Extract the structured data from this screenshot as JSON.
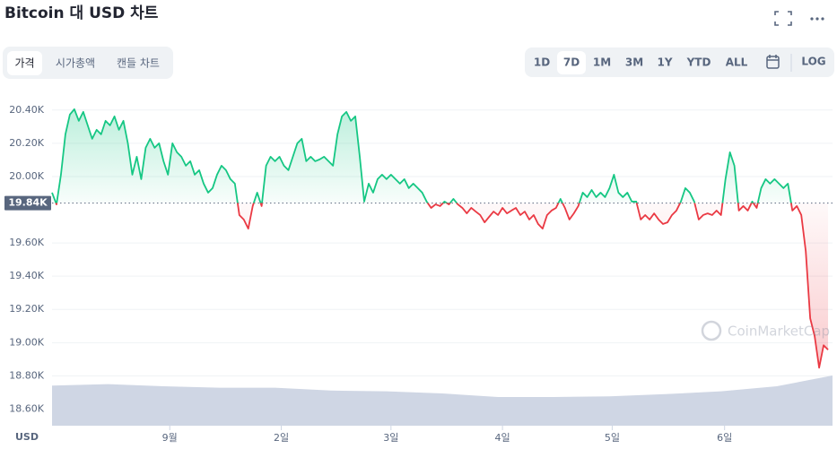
{
  "chart_data": {
    "type": "line",
    "title": "Bitcoin 대 USD 차트",
    "series": [
      {
        "name": "BTC",
        "color_up": "#16c784",
        "color_down": "#ea3943",
        "values": [
          19903,
          19832,
          20011,
          20254,
          20373,
          20405,
          20335,
          20389,
          20308,
          20227,
          20281,
          20254,
          20335,
          20308,
          20362,
          20281,
          20335,
          20200,
          20011,
          20119,
          19984,
          20173,
          20227,
          20173,
          20200,
          20092,
          20011,
          20200,
          20146,
          20119,
          20065,
          20092,
          20011,
          20038,
          19957,
          19903,
          19930,
          20011,
          20065,
          20038,
          19984,
          19957,
          19768,
          19741,
          19686,
          19822,
          19903,
          19822,
          20065,
          20119,
          20092,
          20119,
          20065,
          20038,
          20119,
          20200,
          20227,
          20092,
          20119,
          20092,
          20103,
          20119,
          20092,
          20065,
          20254,
          20362,
          20389,
          20335,
          20362,
          20119,
          19849,
          19957,
          19903,
          19984,
          20011,
          19984,
          20011,
          19984,
          19957,
          19984,
          19930,
          19957,
          19930,
          19903,
          19849,
          19811,
          19832,
          19822,
          19849,
          19832,
          19865,
          19832,
          19811,
          19778,
          19811,
          19789,
          19768,
          19724,
          19757,
          19789,
          19768,
          19811,
          19778,
          19795,
          19811,
          19768,
          19789,
          19741,
          19768,
          19714,
          19686,
          19768,
          19795,
          19811,
          19865,
          19811,
          19741,
          19778,
          19822,
          19903,
          19876,
          19919,
          19876,
          19903,
          19876,
          19930,
          20011,
          19903,
          19876,
          19903,
          19849,
          19849,
          19741,
          19768,
          19741,
          19778,
          19741,
          19714,
          19724,
          19768,
          19795,
          19849,
          19930,
          19903,
          19849,
          19741,
          19768,
          19778,
          19768,
          19795,
          19768,
          19984,
          20146,
          20065,
          19795,
          19822,
          19795,
          19849,
          19811,
          19930,
          19984,
          19957,
          19984,
          19957,
          19930,
          19957,
          19795,
          19822,
          19768,
          19551,
          19146,
          19038,
          18849,
          18984,
          18957
        ]
      }
    ],
    "baseline": {
      "value": 19840,
      "label": "19.84K"
    },
    "xlim": [
      0,
      175
    ],
    "xticks": [
      {
        "value": 26.4,
        "label": "9월"
      },
      {
        "value": 51.4,
        "label": "2일"
      },
      {
        "value": 76,
        "label": "3일"
      },
      {
        "value": 101,
        "label": "4일"
      },
      {
        "value": 125.6,
        "label": "5일"
      },
      {
        "value": 150.8,
        "label": "6일"
      }
    ],
    "ylim": [
      18500,
      20550
    ],
    "yticks": [
      {
        "value": 18600,
        "label": "18.60K"
      },
      {
        "value": 18800,
        "label": "18.80K"
      },
      {
        "value": 19000,
        "label": "19.00K"
      },
      {
        "value": 19200,
        "label": "19.20K"
      },
      {
        "value": 19400,
        "label": "19.40K"
      },
      {
        "value": 19600,
        "label": "19.60K"
      },
      {
        "value": 20000,
        "label": "20.00K"
      },
      {
        "value": 20200,
        "label": "20.20K"
      },
      {
        "value": 20400,
        "label": "20.40K"
      }
    ],
    "grid": true,
    "volume": {
      "color": "#cfd6e4",
      "ylim": [
        0,
        100
      ],
      "values": [
        56,
        58,
        55,
        53,
        53,
        49,
        48,
        45,
        40,
        40,
        41,
        44,
        48,
        55,
        70
      ]
    },
    "currency": "USD",
    "watermark": "CoinMarketCap"
  },
  "controls": {
    "tabs": [
      "가격",
      "시가총액",
      "캔들 차트"
    ],
    "ranges": [
      "1D",
      "7D",
      "1M",
      "3M",
      "1Y",
      "YTD",
      "ALL"
    ],
    "active_range": "7D",
    "log": "LOG"
  }
}
